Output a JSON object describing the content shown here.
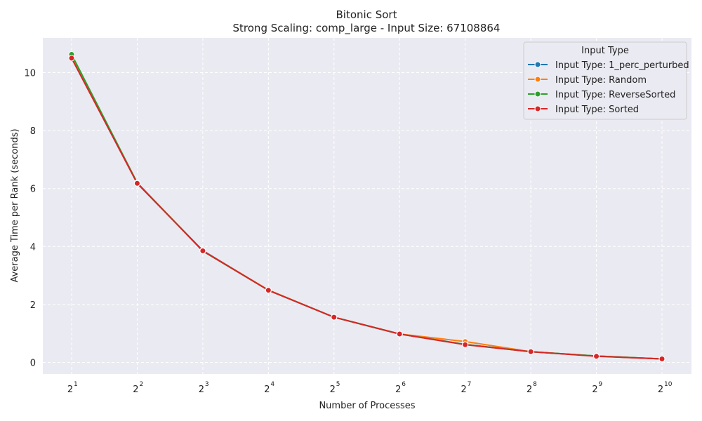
{
  "chart_data": {
    "type": "line",
    "title": "Bitonic Sort",
    "subtitle": "Strong Scaling: comp_large - Input Size: 67108864",
    "xlabel": "Number of Processes",
    "ylabel": "Average Time per Rank (seconds)",
    "x_scale": "log2",
    "x": [
      2,
      4,
      8,
      16,
      32,
      64,
      128,
      256,
      512,
      1024
    ],
    "x_tick_labels": [
      {
        "base": "2",
        "exp": "1"
      },
      {
        "base": "2",
        "exp": "2"
      },
      {
        "base": "2",
        "exp": "3"
      },
      {
        "base": "2",
        "exp": "4"
      },
      {
        "base": "2",
        "exp": "5"
      },
      {
        "base": "2",
        "exp": "6"
      },
      {
        "base": "2",
        "exp": "7"
      },
      {
        "base": "2",
        "exp": "8"
      },
      {
        "base": "2",
        "exp": "9"
      },
      {
        "base": "2",
        "exp": "10"
      }
    ],
    "y_ticks": [
      0,
      2,
      4,
      6,
      8,
      10
    ],
    "ylim": [
      -0.4,
      11.2
    ],
    "grid": true,
    "legend": {
      "title": "Input Type",
      "position": "top-right"
    },
    "series": [
      {
        "name": "Input Type: 1_perc_perturbed",
        "color": "#1f77b4",
        "values": [
          10.55,
          6.18,
          3.86,
          2.49,
          1.56,
          0.98,
          0.62,
          0.37,
          0.22,
          0.12
        ]
      },
      {
        "name": "Input Type: Random",
        "color": "#ff7f0e",
        "values": [
          10.55,
          6.2,
          3.85,
          2.5,
          1.56,
          0.98,
          0.72,
          0.37,
          0.22,
          0.12
        ]
      },
      {
        "name": "Input Type: ReverseSorted",
        "color": "#2ca02c",
        "values": [
          10.63,
          6.2,
          3.84,
          2.49,
          1.56,
          0.98,
          0.62,
          0.37,
          0.22,
          0.12
        ]
      },
      {
        "name": "Input Type: Sorted",
        "color": "#d62728",
        "values": [
          10.5,
          6.18,
          3.85,
          2.49,
          1.56,
          0.98,
          0.61,
          0.37,
          0.21,
          0.12
        ]
      }
    ]
  }
}
